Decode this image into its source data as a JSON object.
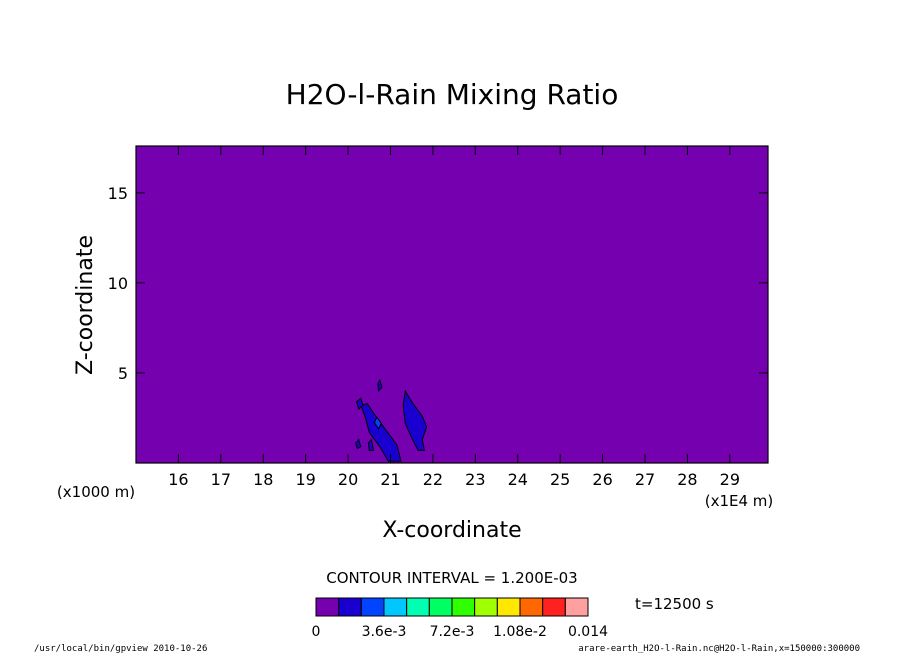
{
  "chart_data": {
    "type": "heatmap",
    "title": "H2O-l-Rain Mixing Ratio",
    "xlabel": "X-coordinate",
    "ylabel": "Z-coordinate",
    "x_unit_note": "(x1E4 m)",
    "y_unit_note": "(x1000 m)",
    "xlim": [
      15.0,
      29.9
    ],
    "ylim": [
      0.0,
      17.6
    ],
    "x_ticks": [
      16,
      17,
      18,
      19,
      20,
      21,
      22,
      23,
      24,
      25,
      26,
      27,
      28,
      29
    ],
    "y_ticks": [
      5,
      10,
      15
    ],
    "background_value_range": [
      0,
      0.0012
    ],
    "rain_features": [
      {
        "name": "shaft-left",
        "value_range": [
          0.0012,
          0.0024
        ],
        "outline": [
          [
            20.45,
            3.3
          ],
          [
            20.65,
            2.6
          ],
          [
            20.9,
            1.8
          ],
          [
            21.15,
            1.0
          ],
          [
            21.25,
            0.1
          ],
          [
            20.95,
            0.1
          ],
          [
            20.75,
            0.9
          ],
          [
            20.5,
            1.7
          ],
          [
            20.4,
            2.6
          ],
          [
            20.3,
            3.2
          ]
        ]
      },
      {
        "name": "shaft-right",
        "value_range": [
          0.0012,
          0.0024
        ],
        "outline": [
          [
            21.35,
            4.0
          ],
          [
            21.5,
            3.4
          ],
          [
            21.75,
            2.6
          ],
          [
            21.85,
            2.0
          ],
          [
            21.75,
            1.3
          ],
          [
            21.8,
            0.7
          ],
          [
            21.65,
            0.7
          ],
          [
            21.5,
            1.4
          ],
          [
            21.35,
            2.2
          ],
          [
            21.3,
            3.2
          ]
        ]
      },
      {
        "name": "core-cell",
        "value_range": [
          0.0024,
          0.0036
        ],
        "outline": [
          [
            20.68,
            2.55
          ],
          [
            20.78,
            2.2
          ],
          [
            20.72,
            1.9
          ],
          [
            20.62,
            2.25
          ]
        ]
      },
      {
        "name": "patch-a",
        "value_range": [
          0.0012,
          0.0024
        ],
        "outline": [
          [
            20.3,
            3.6
          ],
          [
            20.35,
            3.2
          ],
          [
            20.25,
            3.0
          ],
          [
            20.2,
            3.4
          ]
        ]
      },
      {
        "name": "patch-b",
        "value_range": [
          0.0012,
          0.0024
        ],
        "outline": [
          [
            20.75,
            4.6
          ],
          [
            20.8,
            4.2
          ],
          [
            20.72,
            4.0
          ],
          [
            20.7,
            4.4
          ]
        ]
      },
      {
        "name": "patch-c",
        "value_range": [
          0.0012,
          0.0024
        ],
        "outline": [
          [
            20.25,
            1.3
          ],
          [
            20.3,
            0.9
          ],
          [
            20.22,
            0.8
          ],
          [
            20.18,
            1.1
          ]
        ]
      },
      {
        "name": "patch-d",
        "value_range": [
          0.0012,
          0.0024
        ],
        "outline": [
          [
            20.55,
            1.3
          ],
          [
            20.6,
            0.7
          ],
          [
            20.5,
            0.7
          ],
          [
            20.48,
            1.1
          ]
        ]
      }
    ],
    "contour_interval_text": "CONTOUR INTERVAL = 1.200E-03",
    "colorbar": {
      "colors": [
        "#7400b0",
        "#1a00d0",
        "#0044ff",
        "#00c8ff",
        "#00ffb0",
        "#00ff60",
        "#30ff00",
        "#a0ff00",
        "#ffe800",
        "#ff6800",
        "#ff2020",
        "#ffa0a0"
      ],
      "labels": [
        "0",
        "3.6e-3",
        "7.2e-3",
        "1.08e-2",
        "0.014"
      ]
    },
    "time_text": "t=12500 s",
    "footer_left": "/usr/local/bin/gpview  2010-10-26",
    "footer_right": "arare-earth_H2O-l-Rain.nc@H2O-l-Rain,x=150000:300000"
  }
}
